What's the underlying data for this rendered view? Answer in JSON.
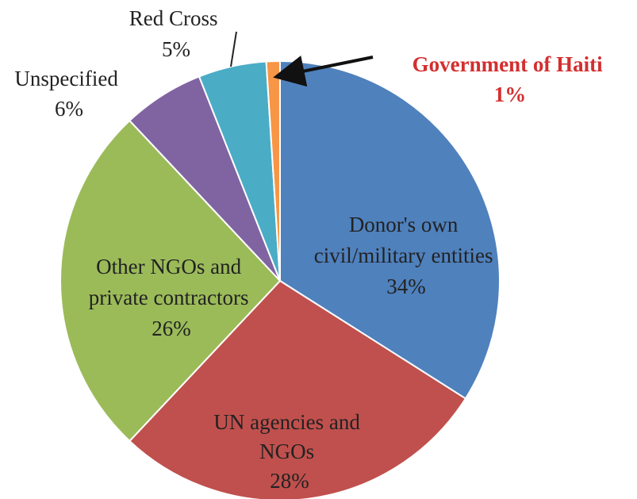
{
  "chart_data": {
    "type": "pie",
    "slices": [
      {
        "label_lines": [
          "Donor's own",
          "civil/military entities"
        ],
        "value": 34,
        "value_text": "34%",
        "color": "#4f81bd"
      },
      {
        "label_lines": [
          "UN agencies and",
          "NGOs"
        ],
        "value": 28,
        "value_text": "28%",
        "color": "#c0504d"
      },
      {
        "label_lines": [
          "Other NGOs and",
          "private contractors"
        ],
        "value": 26,
        "value_text": "26%",
        "color": "#9bbb59"
      },
      {
        "label_lines": [
          "Unspecified"
        ],
        "value": 6,
        "value_text": "6%",
        "color": "#8064a2"
      },
      {
        "label_lines": [
          "Red Cross"
        ],
        "value": 5,
        "value_text": "5%",
        "color": "#4bacc6"
      },
      {
        "label_lines": [
          "Government of Haiti"
        ],
        "value": 1,
        "value_text": "1%",
        "color": "#f79646",
        "highlight_color": "#d32f2f"
      }
    ]
  }
}
